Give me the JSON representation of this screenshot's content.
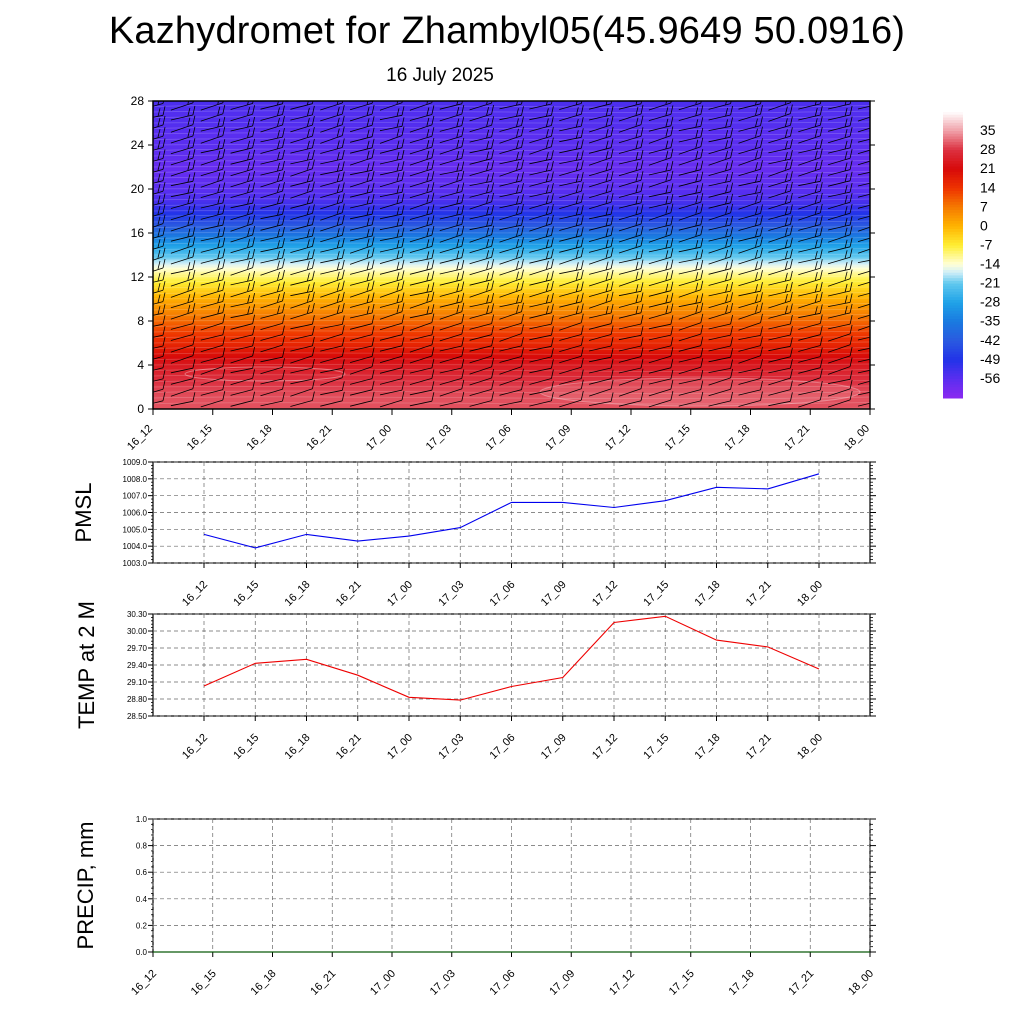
{
  "page": {
    "title": "Kazhydromet for Zhambyl05(45.9649 50.0916)",
    "subtitle": "16 July 2025"
  },
  "colors": {
    "pmsl_line": "#0000ee",
    "temp_line": "#ee0000",
    "precip_line": "#006400",
    "grid": "#666666",
    "barb": "#000000"
  },
  "chart_data": [
    {
      "id": "cross_section",
      "type": "heatmap",
      "title": "",
      "xlabel": "",
      "ylabel": "",
      "categories": [
        "16_12",
        "16_15",
        "16_18",
        "16_21",
        "17_00",
        "17_03",
        "17_06",
        "17_09",
        "17_12",
        "17_15",
        "17_18",
        "17_21",
        "18_00"
      ],
      "yticks": [
        "0",
        "4",
        "8",
        "12",
        "16",
        "20",
        "24",
        "28"
      ],
      "ylim": [
        0,
        28
      ],
      "profile_levels": [
        0,
        1,
        2,
        3,
        4,
        5,
        6,
        7,
        8,
        9,
        10,
        11,
        12,
        13,
        14,
        15,
        16,
        17,
        18,
        19,
        20,
        21,
        22,
        23,
        24,
        25,
        26,
        27,
        28
      ],
      "profile_temperature": [
        30,
        30,
        29,
        27,
        24,
        20,
        16,
        13,
        9,
        5,
        1,
        -4,
        -9,
        -15,
        -22,
        -29,
        -37,
        -44,
        -50,
        -54,
        -56,
        -57,
        -58,
        -57,
        -56,
        -56,
        -55,
        -55,
        -54
      ],
      "wind_barbs": "on",
      "colorbar": {
        "labels": [
          "35",
          "28",
          "21",
          "14",
          "7",
          "0",
          "-7",
          "-14",
          "-21",
          "-28",
          "-35",
          "-42",
          "-49",
          "-56"
        ],
        "range": [
          -63,
          42
        ],
        "stops": [
          {
            "value": 42,
            "color": "#ffffff"
          },
          {
            "value": 35,
            "color": "#f0a0a8"
          },
          {
            "value": 28,
            "color": "#dc3040"
          },
          {
            "value": 21,
            "color": "#d70a0a"
          },
          {
            "value": 14,
            "color": "#ee3300"
          },
          {
            "value": 7,
            "color": "#f57a00"
          },
          {
            "value": 0,
            "color": "#ffb300"
          },
          {
            "value": -7,
            "color": "#ffee33"
          },
          {
            "value": -14,
            "color": "#ffffd8"
          },
          {
            "value": -17,
            "color": "#cfeef8"
          },
          {
            "value": -21,
            "color": "#60c8ee"
          },
          {
            "value": -28,
            "color": "#1fa2e8"
          },
          {
            "value": -35,
            "color": "#1a7ae0"
          },
          {
            "value": -42,
            "color": "#2a5ae0"
          },
          {
            "value": -49,
            "color": "#2233e8"
          },
          {
            "value": -56,
            "color": "#5a2ef0"
          },
          {
            "value": -63,
            "color": "#8a2af0"
          }
        ]
      }
    },
    {
      "id": "pmsl",
      "type": "line",
      "ylabel": "PMSL",
      "categories": [
        "16_12",
        "16_15",
        "16_18",
        "16_21",
        "17_00",
        "17_03",
        "17_06",
        "17_09",
        "17_12",
        "17_15",
        "17_18",
        "17_21",
        "18_00"
      ],
      "yticks": [
        "1003.0",
        "1004.0",
        "1005.0",
        "1006.0",
        "1007.0",
        "1008.0",
        "1009.0"
      ],
      "ylim": [
        1003.0,
        1009.0
      ],
      "grid": "on",
      "series": [
        {
          "values": [
            1004.7,
            1003.9,
            1004.7,
            1004.3,
            1004.6,
            1005.1,
            1006.6,
            1006.6,
            1006.3,
            1006.7,
            1007.5,
            1007.4,
            1008.3
          ]
        }
      ]
    },
    {
      "id": "temp2m",
      "type": "line",
      "ylabel": "TEMP at 2 M",
      "categories": [
        "16_12",
        "16_15",
        "16_18",
        "16_21",
        "17_00",
        "17_03",
        "17_06",
        "17_09",
        "17_12",
        "17_15",
        "17_18",
        "17_21",
        "18_00"
      ],
      "yticks": [
        "28.50",
        "28.80",
        "29.10",
        "29.40",
        "29.70",
        "30.00",
        "30.30"
      ],
      "ylim": [
        28.5,
        30.3
      ],
      "grid": "on",
      "series": [
        {
          "values": [
            29.03,
            29.43,
            29.5,
            29.22,
            28.83,
            28.78,
            29.02,
            29.18,
            30.15,
            30.26,
            29.84,
            29.72,
            29.33
          ]
        }
      ]
    },
    {
      "id": "precip",
      "type": "line",
      "ylabel": "PRECIP, mm",
      "categories": [
        "16_12",
        "16_15",
        "16_18",
        "16_21",
        "17_00",
        "17_03",
        "17_06",
        "17_09",
        "17_12",
        "17_15",
        "17_18",
        "17_21",
        "18_00"
      ],
      "yticks": [
        "0.0",
        "0.2",
        "0.4",
        "0.6",
        "0.8",
        "1.0"
      ],
      "ylim": [
        0.0,
        1.0
      ],
      "grid": "on",
      "series": [
        {
          "values": [
            0,
            0,
            0,
            0,
            0,
            0,
            0,
            0,
            0,
            0,
            0,
            0,
            0
          ]
        }
      ]
    }
  ]
}
